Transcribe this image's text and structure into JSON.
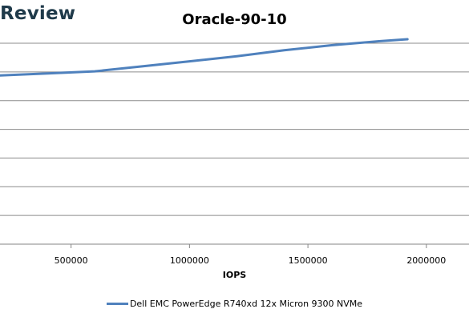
{
  "brand": {
    "text": "Review"
  },
  "chart_data": {
    "type": "line",
    "title": "Oracle-90-10",
    "xlabel": "IOPS",
    "ylabel": "",
    "xlim": [
      200000,
      2180000
    ],
    "ylim": [
      0,
      1
    ],
    "x_ticks": [
      500000,
      1000000,
      1500000,
      2000000
    ],
    "grid": true,
    "legend_position": "bottom",
    "series": [
      {
        "name": "Dell EMC PowerEdge R740xd 12x Micron 9300 NVMe",
        "color": "#4f81bd",
        "x": [
          200000,
          400000,
          600000,
          800000,
          1000000,
          1200000,
          1400000,
          1600000,
          1800000,
          1920000
        ],
        "y": [
          0.84,
          0.85,
          0.86,
          0.885,
          0.91,
          0.935,
          0.965,
          0.99,
          1.01,
          1.02
        ]
      }
    ]
  }
}
